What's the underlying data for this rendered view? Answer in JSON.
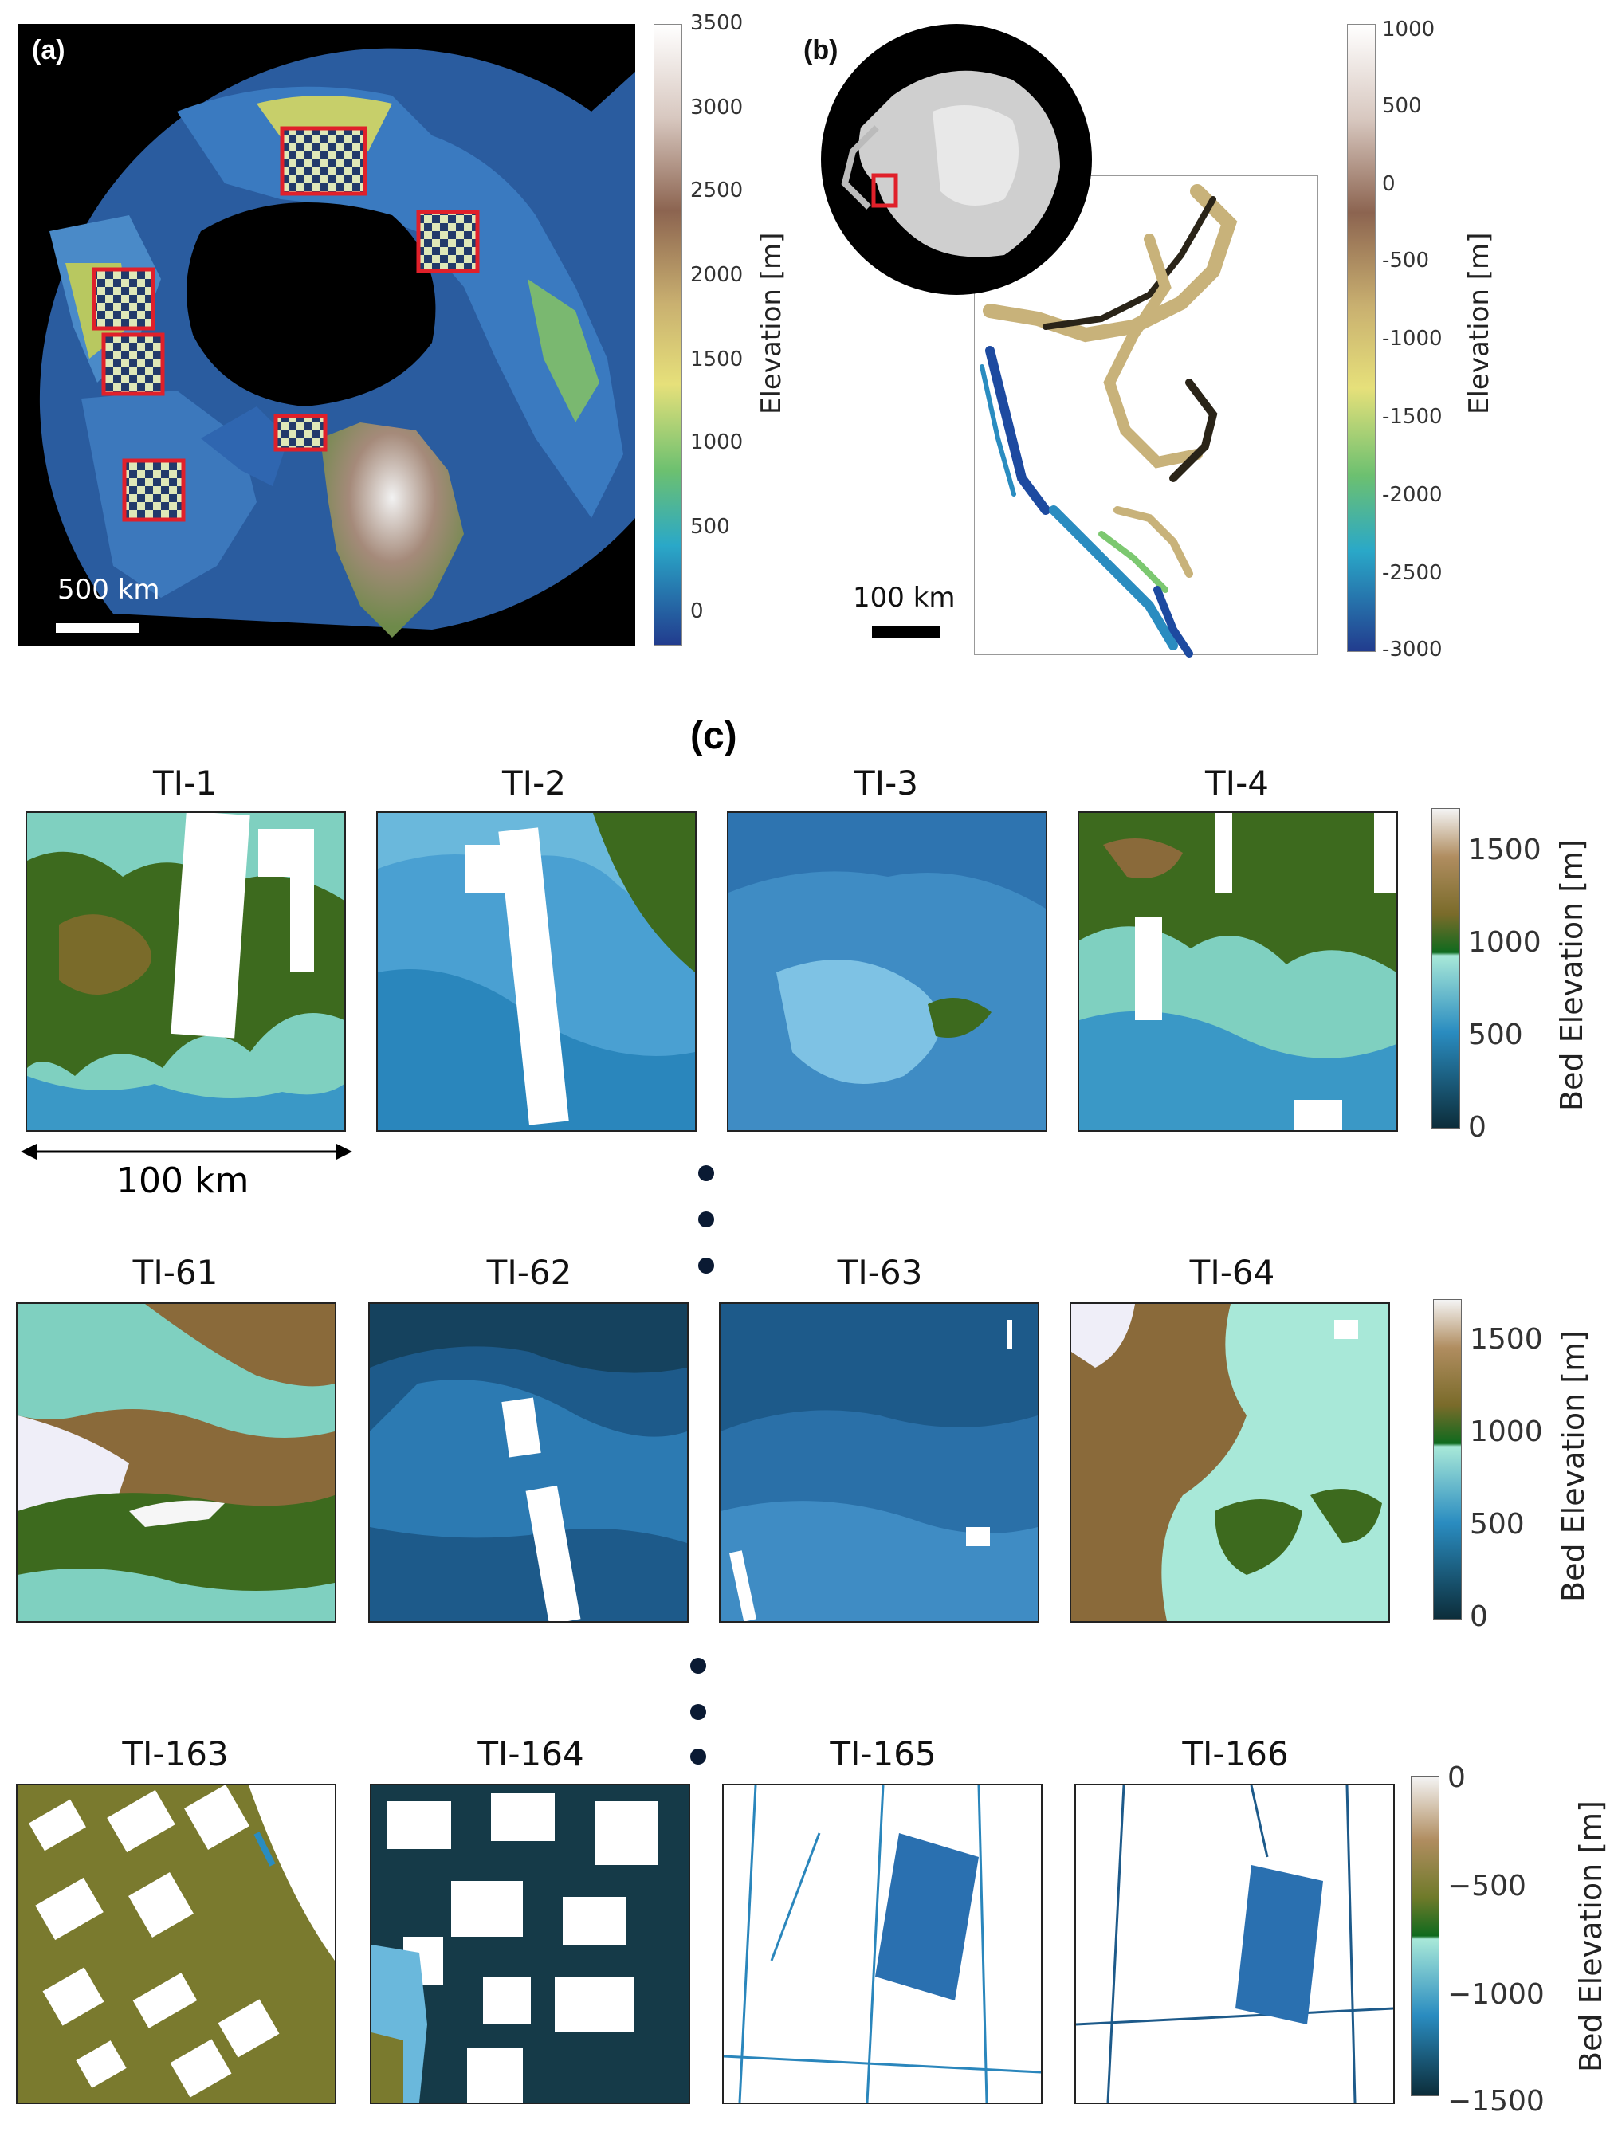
{
  "panel_a": {
    "label": "(a)",
    "scale_label": "500 km",
    "colorbar": {
      "label": "Elevation [m]",
      "ticks": [
        "3500",
        "3000",
        "2500",
        "2000",
        "1500",
        "1000",
        "500",
        "0"
      ]
    }
  },
  "panel_b": {
    "label": "(b)",
    "scale_label": "100 km",
    "colorbar": {
      "label": "Elevation [m]",
      "ticks": [
        "1000",
        "500",
        "0",
        "-500",
        "-1000",
        "-1500",
        "-2000",
        "-2500",
        "-3000"
      ]
    }
  },
  "panel_c": {
    "label": "(c)",
    "scale_label": "100 km",
    "rows": [
      {
        "tiles": [
          "TI-1",
          "TI-2",
          "TI-3",
          "TI-4"
        ],
        "colorbar": {
          "label": "Bed Elevation [m]",
          "ticks": [
            "1500",
            "1000",
            "500",
            "0"
          ]
        }
      },
      {
        "tiles": [
          "TI-61",
          "TI-62",
          "TI-63",
          "TI-64"
        ],
        "colorbar": {
          "label": "Bed Elevation [m]",
          "ticks": [
            "1500",
            "1000",
            "500",
            "0"
          ]
        }
      },
      {
        "tiles": [
          "TI-163",
          "TI-164",
          "TI-165",
          "TI-166"
        ],
        "colorbar": {
          "label": "Bed Elevation [m]",
          "ticks": [
            "0",
            "−500",
            "−1000",
            "−1500"
          ]
        }
      }
    ]
  },
  "colors": {
    "highlight_box": "#e0202a",
    "terrain_low": "#1b3f8f",
    "terrain_high": "#ffffff"
  }
}
